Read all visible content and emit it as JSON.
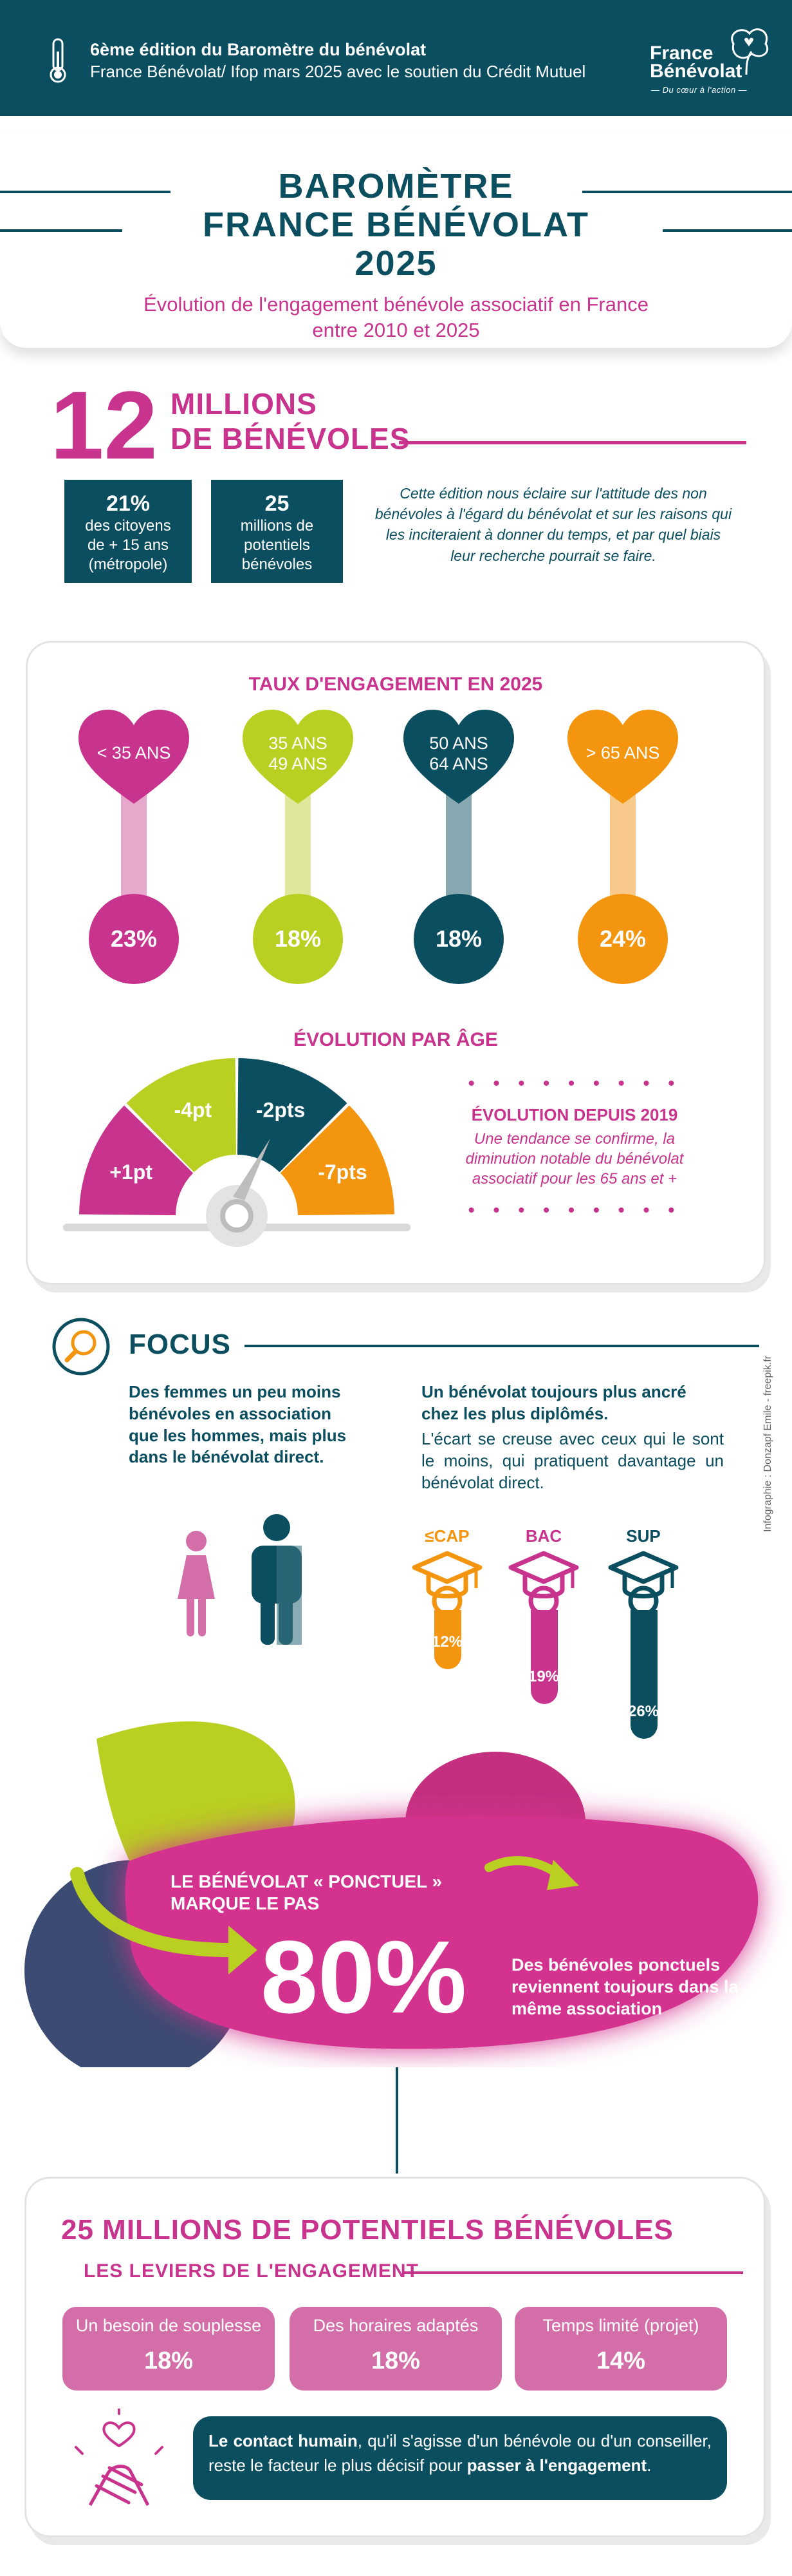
{
  "header": {
    "line1": "6ème édition du Baromètre du bénévolat",
    "line2": "France Bénévolat/ Ifop mars 2025 avec le soutien du Crédit Mutuel",
    "logo_line1": "France",
    "logo_line2": "Bénévolat",
    "logo_tagline": "— Du cœur à l'action —",
    "icons": [
      "thermometer-icon",
      "tree-logo-icon"
    ]
  },
  "title": {
    "line1": "BAROMÈTRE",
    "line2": "FRANCE BÉNÉVOLAT",
    "line3": "2025",
    "subtitle_line1": "Évolution de l'engagement bénévole associatif en France",
    "subtitle_line2": "entre 2010 et 2025"
  },
  "headline": {
    "big_number": "12",
    "word1": "MILLIONS",
    "word2": "DE BÉNÉVOLES",
    "stat1": {
      "value": "21%",
      "line1": "des citoyens",
      "line2": "de + 15 ans",
      "line3": "(métropole)"
    },
    "stat2": {
      "value": "25",
      "line1": "millions de",
      "line2": "potentiels",
      "line3": "bénévoles"
    },
    "intro": "Cette édition nous éclaire sur l'attitude des non bénévoles à l'égard du bénévolat et sur les raisons qui les inciteraient à donner du temps, et par quel biais leur recherche pourrait se faire."
  },
  "engagement": {
    "title": "TAUX D'ENGAGEMENT EN 2025",
    "groups": [
      {
        "label_line1": "< 35 ANS",
        "label_line2": "",
        "rate": "23%",
        "color": "#c8338e",
        "stem": "#e6a9cb"
      },
      {
        "label_line1": "35 ANS",
        "label_line2": "49 ANS",
        "rate": "18%",
        "color": "#b9cf21",
        "stem": "#dfe79a"
      },
      {
        "label_line1": "50 ANS",
        "label_line2": "64 ANS",
        "rate": "18%",
        "color": "#0b4e5f",
        "stem": "#88a8b1"
      },
      {
        "label_line1": "> 65 ANS",
        "label_line2": "",
        "rate": "24%",
        "color": "#f4950f",
        "stem": "#f8c98a"
      }
    ],
    "evolution_title": "ÉVOLUTION PAR ÂGE",
    "gauge": [
      {
        "label": "+1pt",
        "color": "#c8338e"
      },
      {
        "label": "-4pt",
        "color": "#b9cf21"
      },
      {
        "label": "-2pts",
        "color": "#0b4e5f"
      },
      {
        "label": "-7pts",
        "color": "#f4950f"
      }
    ],
    "dots": "• • • • • • • • •",
    "since_title": "ÉVOLUTION DEPUIS 2019",
    "since_text": "Une tendance se confirme, la diminution notable du bénévolat associatif pour les 65 ans et +"
  },
  "focus": {
    "title": "FOCUS",
    "left_text": "Des femmes un peu moins bénévoles en association que les hommes, mais plus dans le bénévolat direct.",
    "right_bold": "Un bénévolat toujours plus ancré chez les plus diplômés.",
    "right_text": "L'écart se creuse avec ceux qui le sont le moins, qui pratiquent davantage un bénévolat direct.",
    "credit": "Infographie : Donzapf Emile - freepik.fr",
    "degrees": [
      {
        "label": "≤CAP",
        "value": "12%",
        "color": "#f4950f",
        "bar": 0.46
      },
      {
        "label": "BAC",
        "value": "19%",
        "color": "#c8338e",
        "bar": 0.73
      },
      {
        "label": "SUP",
        "value": "26%",
        "color": "#0b4e5f",
        "bar": 1.0
      }
    ]
  },
  "ponctuel": {
    "label": "LE BÉNÉVOLAT « PONCTUEL » MARQUE LE PAS",
    "value": "80%",
    "text": "Des bénévoles ponctuels reviennent toujours dans la même association"
  },
  "potentiels": {
    "title": "25 MILLIONS DE POTENTIELS BÉNÉVOLES",
    "subtitle": "LES LEVIERS DE L'ENGAGEMENT",
    "levers": [
      {
        "label": "Un besoin de souplesse",
        "value": "18%"
      },
      {
        "label": "Des horaires adaptés",
        "value": "18%"
      },
      {
        "label": "Temps limité (projet)",
        "value": "14%"
      }
    ],
    "contact_bold1": "Le contact humain",
    "contact_mid": ", qu'il s'agisse d'un bénévole ou d'un conseiller, reste le facteur le plus décisif pour ",
    "contact_bold2": "passer à l'engagement",
    "contact_end": "."
  }
}
